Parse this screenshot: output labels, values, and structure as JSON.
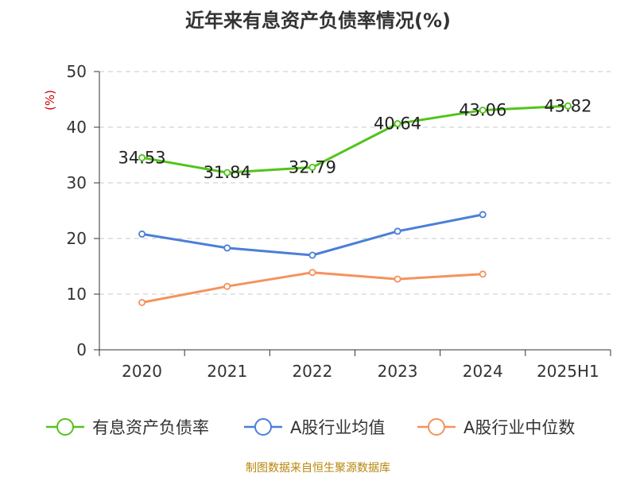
{
  "title": "近年来有息资产负债率情况(%)",
  "source": "制图数据来自恒生聚源数据库",
  "chart_data": {
    "type": "line",
    "title": "近年来有息资产负债率情况(%)",
    "ylabel": "(%)",
    "categories": [
      "2020",
      "2021",
      "2022",
      "2023",
      "2024",
      "2025H1"
    ],
    "ylim": [
      0,
      50
    ],
    "yticks": [
      0,
      10,
      20,
      30,
      40,
      50
    ],
    "grid": "horizontal-dashed",
    "legend_position": "bottom",
    "series": [
      {
        "name": "有息资产负债率",
        "color": "#52c41a",
        "values": [
          34.53,
          31.84,
          32.79,
          40.64,
          43.06,
          43.82
        ],
        "labels": [
          "34.53",
          "31.84",
          "32.79",
          "40.64",
          "43.06",
          "43.82"
        ]
      },
      {
        "name": "A股行业均值",
        "color": "#4a7fd8",
        "values": [
          20.8,
          18.3,
          17.0,
          21.3,
          24.3,
          null
        ]
      },
      {
        "name": "A股行业中位数",
        "color": "#f5925e",
        "values": [
          8.5,
          11.4,
          13.9,
          12.7,
          13.6,
          null
        ]
      }
    ]
  }
}
